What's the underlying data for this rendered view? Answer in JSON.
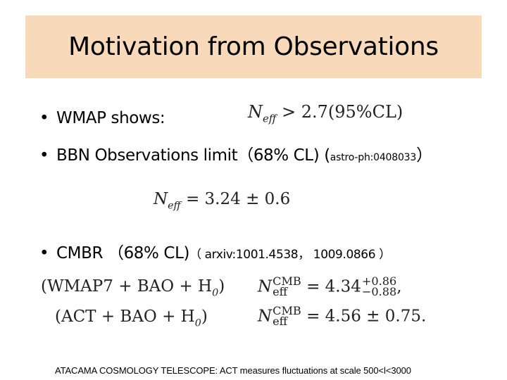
{
  "slide": {
    "title": "Motivation from Observations",
    "bullet_wmap": "WMAP shows:",
    "bullet_bbn_main": "BBN Observations limit（68% CL) (",
    "bullet_bbn_ref": "astro-ph:0408033",
    "bullet_bbn_close": "）",
    "bullet_cmbr_main": "CMBR （68% CL)",
    "bullet_cmbr_ref": "（ arxiv:1001.4538， 1009.0866 ）",
    "footnote": "ATACAMA COSMOLOGY TELESCOPE: ACT measures fluctuations at scale 500<l<3000",
    "bullet_char": "•"
  },
  "equations": {
    "wmap": {
      "lhs": "N",
      "sub": "eff",
      "rel": "> 2.7(95%CL)"
    },
    "bbn": {
      "lhs": "N",
      "sub": "eff",
      "rel": "= 3.24 ± 0.6"
    },
    "wmap7": {
      "dataset": "(WMAP7 + BAO + H",
      "h_sub": "0",
      "close": ")",
      "sup": "CMB",
      "sub": "eff",
      "rel": "= 4.34",
      "plus_err": "+0.86",
      "minus_err": "−0.88",
      "tail": ","
    },
    "act": {
      "dataset": "(ACT + BAO + H",
      "h_sub": "0",
      "close": ")",
      "sup": "CMB",
      "sub": "eff",
      "rel": "= 4.56 ± 0.75",
      "tail": "."
    }
  },
  "colors": {
    "title_bg": "#f8d9b9",
    "text": "#000000",
    "math": "#222222"
  }
}
